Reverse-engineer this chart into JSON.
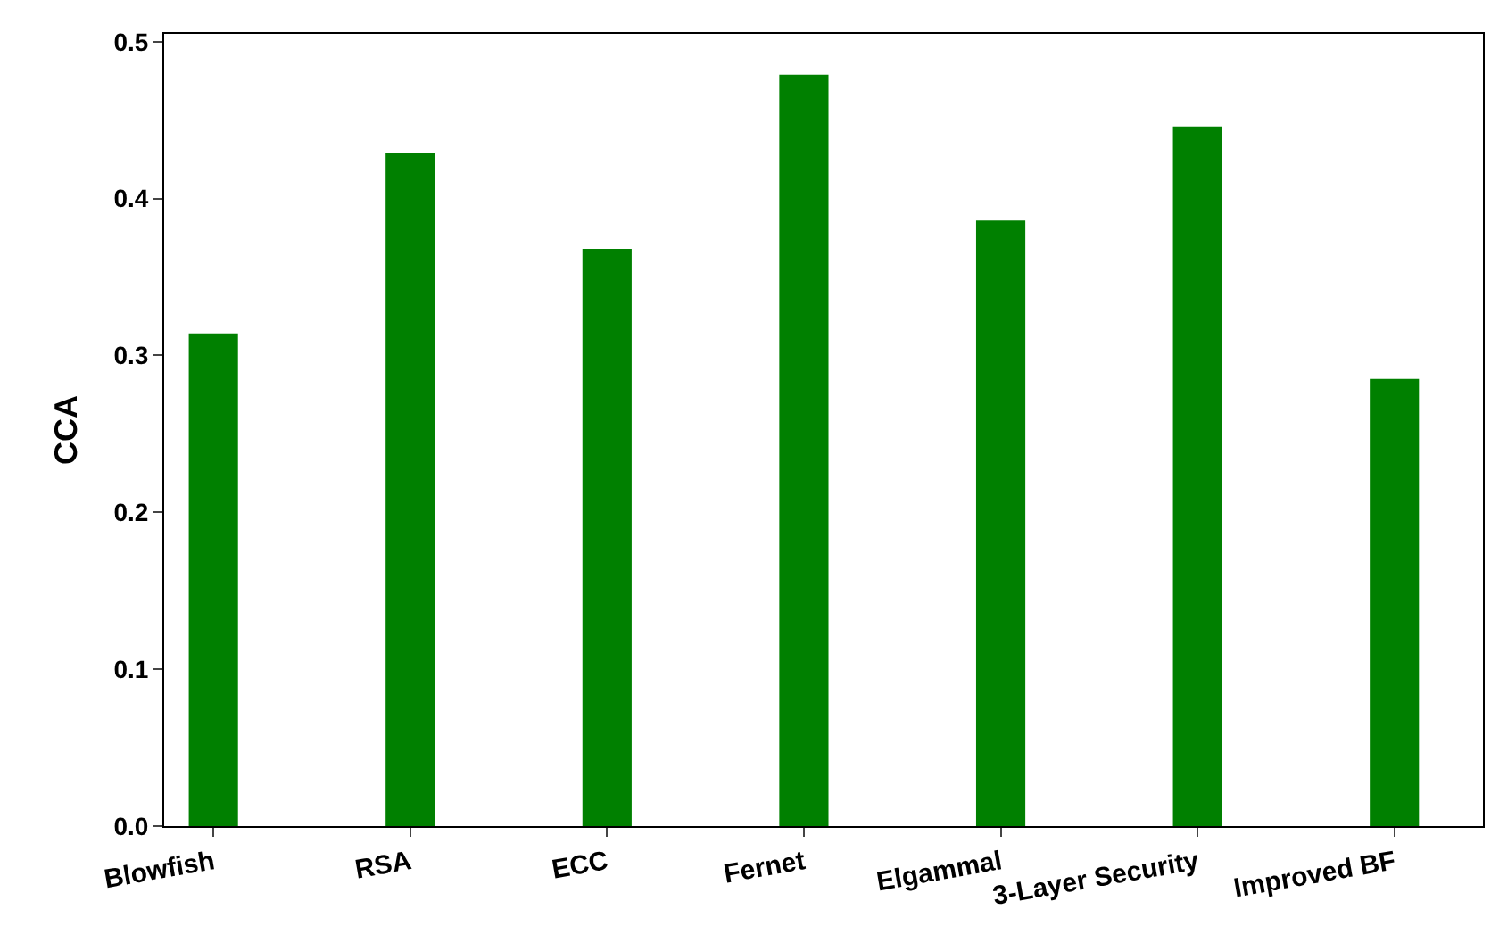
{
  "chart_data": {
    "type": "bar",
    "ylabel": "CCA",
    "categories": [
      "Blowfish",
      "RSA",
      "ECC",
      "Fernet",
      "Elgammal",
      "3-Layer Security",
      "Improved BF"
    ],
    "values": [
      0.314,
      0.429,
      0.368,
      0.479,
      0.386,
      0.446,
      0.285
    ],
    "color": "#008000",
    "ylim": [
      0,
      0.505
    ],
    "yticks": [
      {
        "value": 0,
        "label": "0.0"
      },
      0.1,
      0.2,
      0.3,
      0.4,
      0.5
    ]
  }
}
